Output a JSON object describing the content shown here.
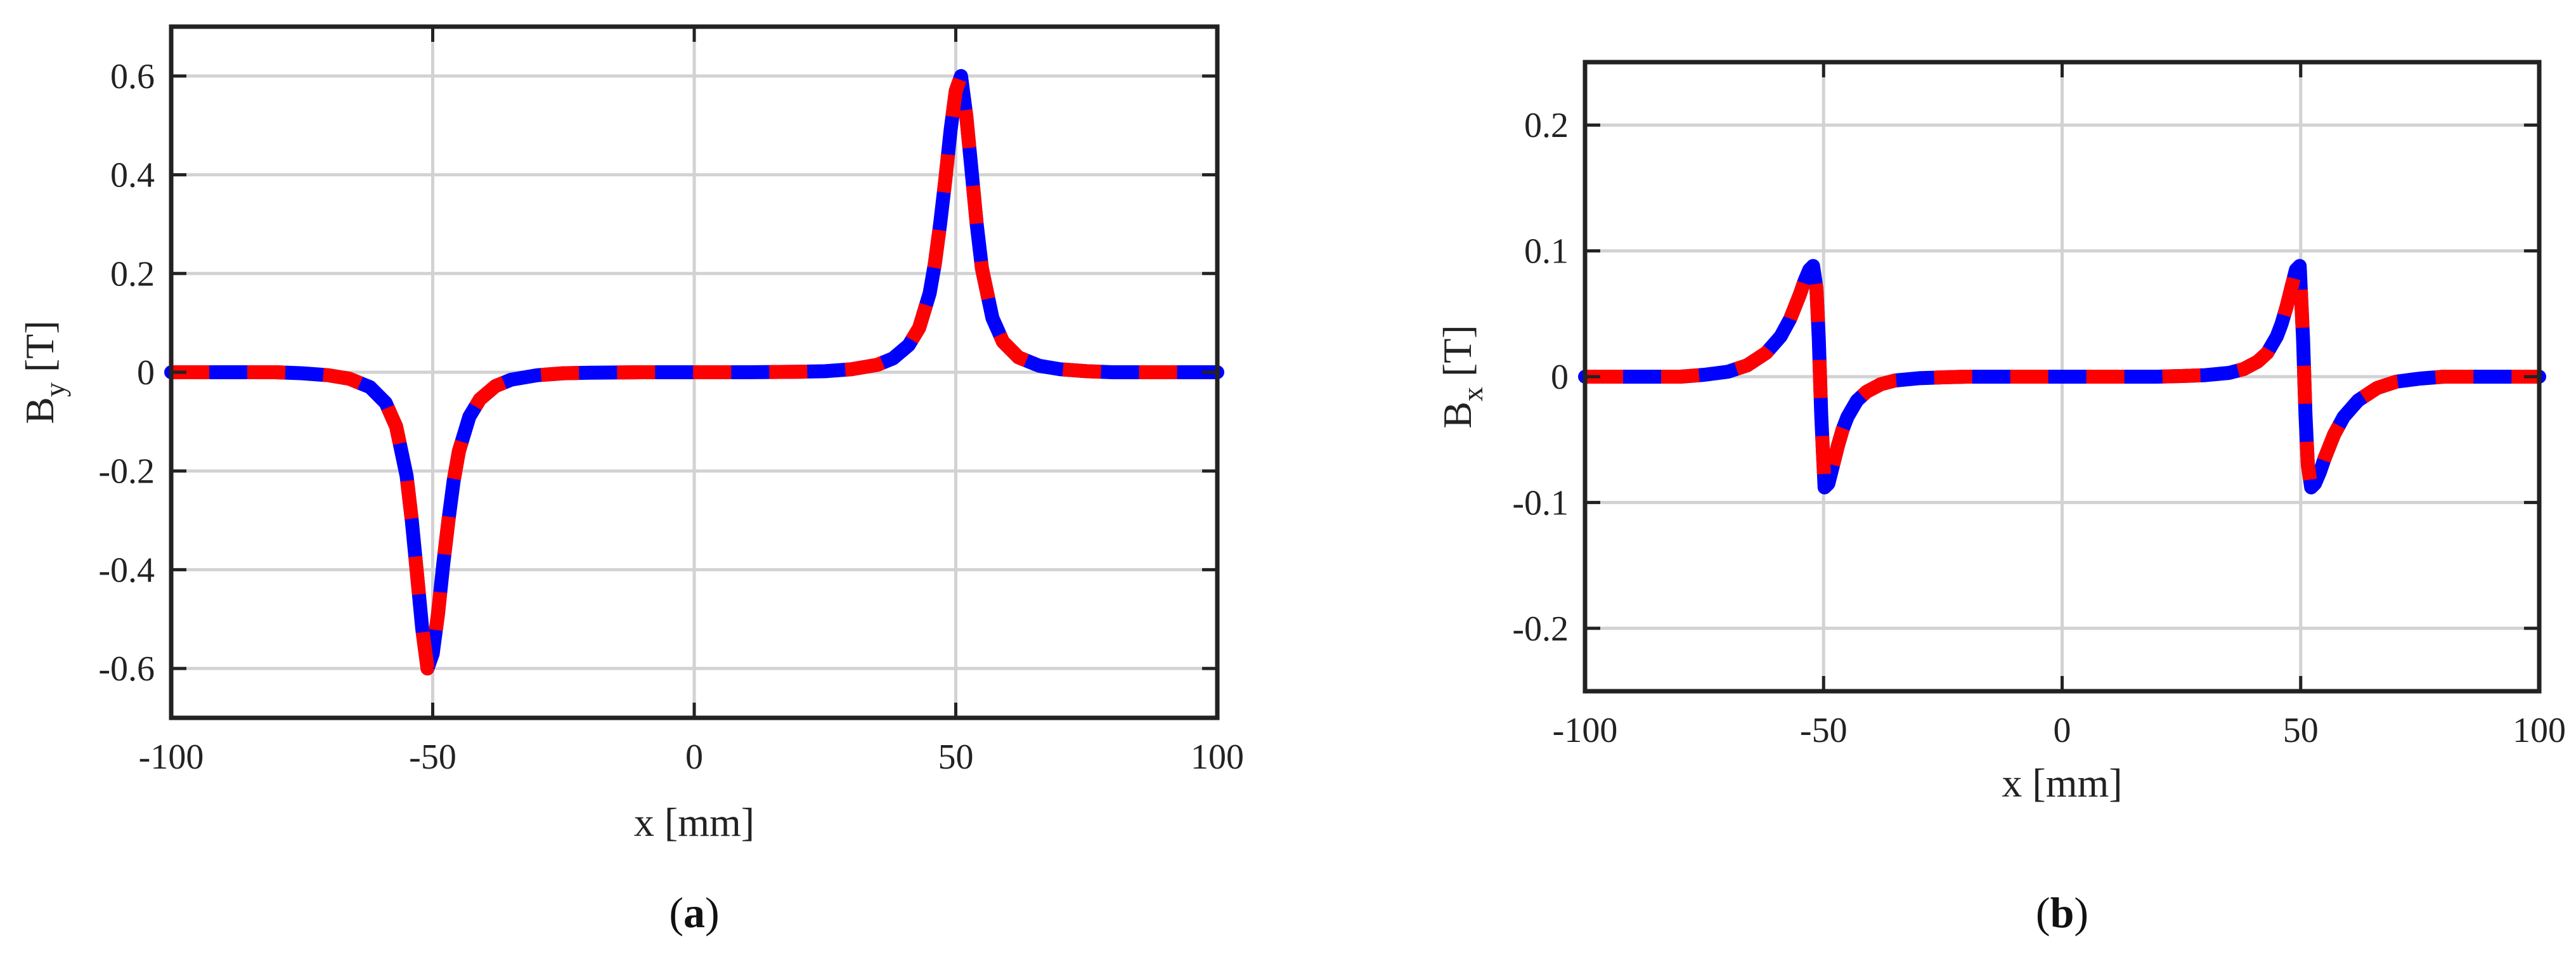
{
  "chart_data": [
    {
      "type": "line",
      "panel_label_open": "(",
      "panel_label_letter": "a",
      "panel_label_close": ")",
      "xlabel": "x [mm]",
      "ylabel_main": "B",
      "ylabel_sub": "y",
      "ylabel_unit": " [T]",
      "xlim": [
        -100,
        100
      ],
      "ylim": [
        -0.7,
        0.7
      ],
      "xticks": [
        -100,
        -50,
        0,
        50,
        100
      ],
      "xtick_labels": [
        "-100",
        "-50",
        "0",
        "50",
        "100"
      ],
      "yticks": [
        -0.6,
        -0.4,
        -0.2,
        0,
        0.2,
        0.4,
        0.6
      ],
      "ytick_labels": [
        "-0.6",
        "-0.4",
        "-0.2",
        "0",
        "0.2",
        "0.4",
        "0.6"
      ],
      "grid": true,
      "series": [
        {
          "style": "solid",
          "color": "#0000ff",
          "x": [
            -100,
            -80,
            -75,
            -70,
            -66,
            -62,
            -59,
            -57,
            -55,
            -54,
            -53,
            -52,
            -51,
            -50,
            -49,
            -48,
            -47,
            -46,
            -45,
            -43,
            -41,
            -38,
            -35,
            -30,
            -25,
            -20,
            -10,
            0,
            10,
            20,
            25,
            30,
            35,
            38,
            41,
            43,
            45,
            46,
            47,
            48,
            49,
            50,
            51,
            52,
            53,
            54,
            55,
            57,
            59,
            62,
            66,
            70,
            75,
            80,
            100
          ],
          "y": [
            0,
            0,
            -0.002,
            -0.006,
            -0.013,
            -0.03,
            -0.062,
            -0.11,
            -0.21,
            -0.3,
            -0.41,
            -0.52,
            -0.6,
            -0.57,
            -0.49,
            -0.39,
            -0.3,
            -0.22,
            -0.16,
            -0.09,
            -0.055,
            -0.028,
            -0.015,
            -0.006,
            -0.002,
            -0.001,
            0,
            0,
            0,
            0.001,
            0.002,
            0.006,
            0.015,
            0.028,
            0.055,
            0.09,
            0.16,
            0.22,
            0.3,
            0.39,
            0.49,
            0.57,
            0.6,
            0.52,
            0.41,
            0.3,
            0.21,
            0.11,
            0.062,
            0.03,
            0.013,
            0.006,
            0.002,
            0,
            0
          ]
        },
        {
          "style": "dashed",
          "color": "#ff0000",
          "x": [
            -100,
            -80,
            -75,
            -70,
            -66,
            -62,
            -59,
            -57,
            -55,
            -54,
            -53,
            -52,
            -51,
            -50,
            -49,
            -48,
            -47,
            -46,
            -45,
            -43,
            -41,
            -38,
            -35,
            -30,
            -25,
            -20,
            -10,
            0,
            10,
            20,
            25,
            30,
            35,
            38,
            41,
            43,
            45,
            46,
            47,
            48,
            49,
            50,
            51,
            52,
            53,
            54,
            55,
            57,
            59,
            62,
            66,
            70,
            75,
            80,
            100
          ],
          "y": [
            0,
            0,
            -0.002,
            -0.006,
            -0.013,
            -0.03,
            -0.062,
            -0.11,
            -0.21,
            -0.3,
            -0.41,
            -0.52,
            -0.6,
            -0.57,
            -0.49,
            -0.39,
            -0.3,
            -0.22,
            -0.16,
            -0.09,
            -0.055,
            -0.028,
            -0.015,
            -0.006,
            -0.002,
            -0.001,
            0,
            0,
            0,
            0.001,
            0.002,
            0.006,
            0.015,
            0.028,
            0.055,
            0.09,
            0.16,
            0.22,
            0.3,
            0.39,
            0.49,
            0.57,
            0.6,
            0.52,
            0.41,
            0.3,
            0.21,
            0.11,
            0.062,
            0.03,
            0.013,
            0.006,
            0.002,
            0,
            0
          ]
        }
      ]
    },
    {
      "type": "line",
      "panel_label_open": "(",
      "panel_label_letter": "b",
      "panel_label_close": ")",
      "xlabel": "x [mm]",
      "ylabel_main": "B",
      "ylabel_sub": "x",
      "ylabel_unit": " [T]",
      "xlim": [
        -100,
        100
      ],
      "ylim": [
        -0.25,
        0.25
      ],
      "xticks": [
        -100,
        -50,
        0,
        50,
        100
      ],
      "xtick_labels": [
        "-100",
        "-50",
        "0",
        "50",
        "100"
      ],
      "yticks": [
        -0.2,
        -0.1,
        0,
        0.1,
        0.2
      ],
      "ytick_labels": [
        "-0.2",
        "-0.1",
        "0",
        "0.1",
        "0.2"
      ],
      "grid": true,
      "series": [
        {
          "style": "solid",
          "color": "#0000ff",
          "x": [
            -100,
            -80,
            -75,
            -70,
            -66,
            -62,
            -59,
            -57,
            -55,
            -54,
            -53,
            -52.2,
            -51.5,
            -51,
            -50.5,
            -49.8,
            -49,
            -48,
            -47,
            -46,
            -45,
            -43,
            -41,
            -38,
            -35,
            -30,
            -25,
            -20,
            -10,
            0,
            10,
            20,
            25,
            30,
            35,
            38,
            41,
            43,
            45,
            46,
            47,
            48,
            49,
            49.8,
            50.5,
            51,
            51.5,
            52.2,
            53,
            54,
            55,
            57,
            59,
            62,
            66,
            70,
            75,
            80,
            100
          ],
          "y": [
            0,
            0,
            0.0015,
            0.004,
            0.009,
            0.019,
            0.032,
            0.046,
            0.065,
            0.076,
            0.085,
            0.088,
            0.07,
            0.03,
            -0.03,
            -0.088,
            -0.085,
            -0.07,
            -0.055,
            -0.042,
            -0.032,
            -0.019,
            -0.012,
            -0.006,
            -0.003,
            -0.0012,
            -0.0005,
            0,
            0,
            0,
            0,
            0,
            0.0005,
            0.0012,
            0.003,
            0.006,
            0.012,
            0.019,
            0.032,
            0.042,
            0.055,
            0.07,
            0.085,
            0.088,
            0.03,
            -0.03,
            -0.07,
            -0.088,
            -0.085,
            -0.076,
            -0.065,
            -0.046,
            -0.032,
            -0.019,
            -0.009,
            -0.004,
            -0.0015,
            0,
            0
          ]
        },
        {
          "style": "dashed",
          "color": "#ff0000",
          "x": [
            -100,
            -80,
            -75,
            -70,
            -66,
            -62,
            -59,
            -57,
            -55,
            -54,
            -53,
            -52.2,
            -51.5,
            -51,
            -50.5,
            -49.8,
            -49,
            -48,
            -47,
            -46,
            -45,
            -43,
            -41,
            -38,
            -35,
            -30,
            -25,
            -20,
            -10,
            0,
            10,
            20,
            25,
            30,
            35,
            38,
            41,
            43,
            45,
            46,
            47,
            48,
            49,
            49.8,
            50.5,
            51,
            51.5,
            52.2,
            53,
            54,
            55,
            57,
            59,
            62,
            66,
            70,
            75,
            80,
            100
          ],
          "y": [
            0,
            0,
            0.0015,
            0.004,
            0.009,
            0.019,
            0.032,
            0.046,
            0.065,
            0.076,
            0.085,
            0.088,
            0.07,
            0.03,
            -0.03,
            -0.088,
            -0.085,
            -0.07,
            -0.055,
            -0.042,
            -0.032,
            -0.019,
            -0.012,
            -0.006,
            -0.003,
            -0.0012,
            -0.0005,
            0,
            0,
            0,
            0,
            0,
            0.0005,
            0.0012,
            0.003,
            0.006,
            0.012,
            0.019,
            0.032,
            0.042,
            0.055,
            0.07,
            0.085,
            0.088,
            0.03,
            -0.03,
            -0.07,
            -0.088,
            -0.085,
            -0.076,
            -0.065,
            -0.046,
            -0.032,
            -0.019,
            -0.009,
            -0.004,
            -0.0015,
            0,
            0
          ]
        }
      ]
    }
  ]
}
